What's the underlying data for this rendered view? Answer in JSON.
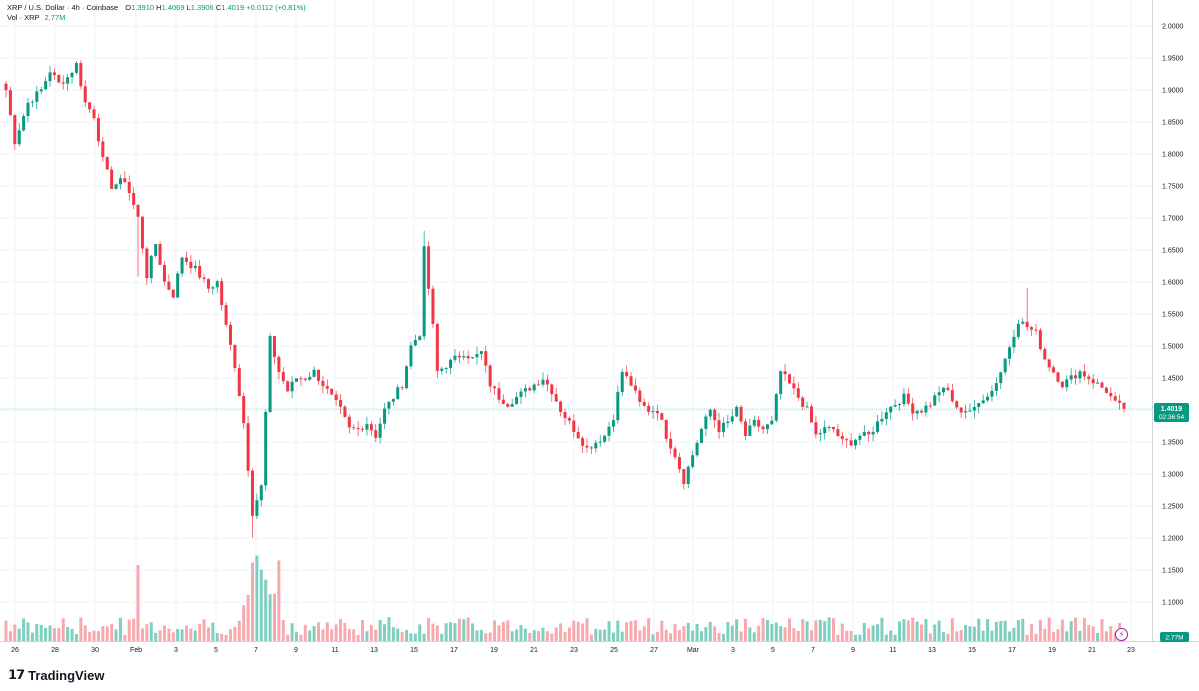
{
  "header": {
    "symbol": "XRP / U.S. Dollar · 4h · Coinbase",
    "open_label": "O",
    "open": "1.3910",
    "high_label": "H",
    "high": "1.4069",
    "low_label": "L",
    "low": "1.3906",
    "close_label": "C",
    "close": "1.4019",
    "change": "+0.0112 (+0.81%)",
    "vol_label": "Vol · XRP",
    "vol_value": "2.77M"
  },
  "price_tag": {
    "price": "1.4019",
    "countdown": "02:36:54"
  },
  "vol_tag": "2.77M",
  "brand": "TradingView",
  "colors": {
    "up": "#089981",
    "down": "#f23645",
    "up_vol": "#7fcfc0",
    "down_vol": "#f7a9ae",
    "grid": "#f0f3fa",
    "text": "#131722"
  },
  "chart_data": {
    "type": "candlestick",
    "symbol": "XRP / U.S. Dollar",
    "interval": "4h",
    "exchange": "Coinbase",
    "y_ticks": [
      "2.0000",
      "1.9500",
      "1.9000",
      "1.8500",
      "1.8000",
      "1.7500",
      "1.7000",
      "1.6500",
      "1.6000",
      "1.5500",
      "1.5000",
      "1.4500",
      "1.4000",
      "1.3500",
      "1.3000",
      "1.2500",
      "1.2000",
      "1.1500",
      "1.1000"
    ],
    "ylim": [
      1.055,
      2.005
    ],
    "x_ticks": [
      "26",
      "28",
      "30",
      "Feb",
      "3",
      "5",
      "7",
      "9",
      "11",
      "13",
      "15",
      "17",
      "19",
      "21",
      "23",
      "25",
      "27",
      "Mar",
      "3",
      "5",
      "7",
      "9",
      "11",
      "13",
      "15",
      "17",
      "19",
      "21",
      "23"
    ],
    "last_price": 1.4019,
    "series": [
      {
        "name": "price",
        "anchors": [
          [
            0,
            1.9
          ],
          [
            2,
            1.82
          ],
          [
            5,
            1.88
          ],
          [
            8,
            1.9
          ],
          [
            10,
            1.93
          ],
          [
            12,
            1.91
          ],
          [
            14,
            1.92
          ],
          [
            16,
            1.94
          ],
          [
            18,
            1.88
          ],
          [
            20,
            1.86
          ],
          [
            22,
            1.79
          ],
          [
            24,
            1.75
          ],
          [
            27,
            1.76
          ],
          [
            30,
            1.7
          ],
          [
            32,
            1.61
          ],
          [
            34,
            1.66
          ],
          [
            36,
            1.6
          ],
          [
            38,
            1.58
          ],
          [
            40,
            1.64
          ],
          [
            43,
            1.62
          ],
          [
            46,
            1.59
          ],
          [
            48,
            1.6
          ],
          [
            50,
            1.53
          ],
          [
            52,
            1.47
          ],
          [
            54,
            1.38
          ],
          [
            56,
            1.24
          ],
          [
            58,
            1.28
          ],
          [
            60,
            1.51
          ],
          [
            62,
            1.46
          ],
          [
            64,
            1.43
          ],
          [
            66,
            1.45
          ],
          [
            68,
            1.45
          ],
          [
            70,
            1.46
          ],
          [
            72,
            1.44
          ],
          [
            74,
            1.42
          ],
          [
            76,
            1.4
          ],
          [
            78,
            1.37
          ],
          [
            80,
            1.37
          ],
          [
            82,
            1.38
          ],
          [
            84,
            1.36
          ],
          [
            86,
            1.4
          ],
          [
            88,
            1.42
          ],
          [
            90,
            1.44
          ],
          [
            92,
            1.5
          ],
          [
            94,
            1.52
          ],
          [
            95,
            1.65
          ],
          [
            96,
            1.59
          ],
          [
            97,
            1.53
          ],
          [
            98,
            1.46
          ],
          [
            100,
            1.47
          ],
          [
            102,
            1.48
          ],
          [
            104,
            1.49
          ],
          [
            106,
            1.48
          ],
          [
            108,
            1.49
          ],
          [
            110,
            1.44
          ],
          [
            112,
            1.42
          ],
          [
            114,
            1.41
          ],
          [
            116,
            1.42
          ],
          [
            118,
            1.43
          ],
          [
            120,
            1.44
          ],
          [
            122,
            1.45
          ],
          [
            124,
            1.43
          ],
          [
            126,
            1.4
          ],
          [
            128,
            1.38
          ],
          [
            130,
            1.36
          ],
          [
            132,
            1.34
          ],
          [
            134,
            1.35
          ],
          [
            136,
            1.36
          ],
          [
            138,
            1.39
          ],
          [
            140,
            1.46
          ],
          [
            142,
            1.44
          ],
          [
            144,
            1.41
          ],
          [
            146,
            1.4
          ],
          [
            148,
            1.4
          ],
          [
            150,
            1.36
          ],
          [
            152,
            1.33
          ],
          [
            154,
            1.29
          ],
          [
            156,
            1.33
          ],
          [
            158,
            1.37
          ],
          [
            160,
            1.4
          ],
          [
            162,
            1.37
          ],
          [
            164,
            1.38
          ],
          [
            166,
            1.4
          ],
          [
            168,
            1.36
          ],
          [
            170,
            1.38
          ],
          [
            172,
            1.37
          ],
          [
            174,
            1.38
          ],
          [
            176,
            1.46
          ],
          [
            178,
            1.44
          ],
          [
            180,
            1.42
          ],
          [
            182,
            1.4
          ],
          [
            184,
            1.36
          ],
          [
            186,
            1.37
          ],
          [
            188,
            1.37
          ],
          [
            190,
            1.35
          ],
          [
            192,
            1.35
          ],
          [
            194,
            1.36
          ],
          [
            196,
            1.36
          ],
          [
            198,
            1.38
          ],
          [
            200,
            1.4
          ],
          [
            202,
            1.41
          ],
          [
            204,
            1.42
          ],
          [
            206,
            1.4
          ],
          [
            208,
            1.4
          ],
          [
            210,
            1.41
          ],
          [
            212,
            1.43
          ],
          [
            214,
            1.43
          ],
          [
            216,
            1.4
          ],
          [
            218,
            1.4
          ],
          [
            220,
            1.4
          ],
          [
            222,
            1.42
          ],
          [
            224,
            1.43
          ],
          [
            226,
            1.46
          ],
          [
            228,
            1.5
          ],
          [
            230,
            1.54
          ],
          [
            232,
            1.53
          ],
          [
            234,
            1.52
          ],
          [
            236,
            1.48
          ],
          [
            238,
            1.46
          ],
          [
            240,
            1.44
          ],
          [
            242,
            1.45
          ],
          [
            244,
            1.46
          ],
          [
            246,
            1.45
          ],
          [
            248,
            1.44
          ],
          [
            250,
            1.43
          ],
          [
            252,
            1.41
          ],
          [
            254,
            1.4019
          ]
        ]
      }
    ]
  }
}
